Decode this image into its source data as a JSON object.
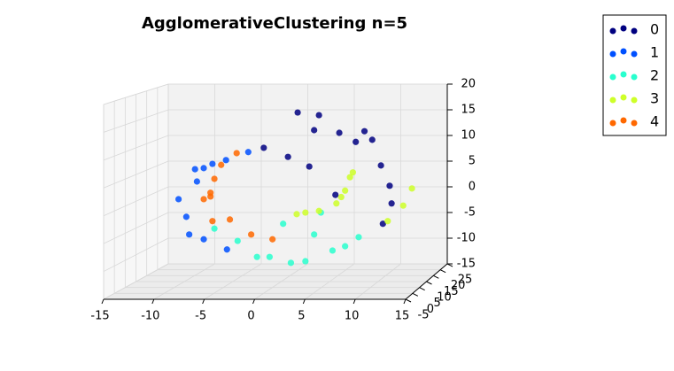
{
  "chart_data": {
    "type": "scatter3d",
    "title": "AgglomerativeClustering n=5",
    "xlim": [
      -15,
      15
    ],
    "xticks": [
      -15,
      -10,
      -5,
      0,
      5,
      10,
      15
    ],
    "ylim": [
      -5,
      25
    ],
    "yticks": [
      -5,
      0,
      5,
      10,
      15,
      20,
      25
    ],
    "zlim": [
      -15,
      20
    ],
    "zticks": [
      -15,
      -10,
      -5,
      0,
      5,
      10,
      15,
      20
    ],
    "grid": true,
    "legend": "outside-upper-right",
    "series": [
      {
        "name": "0",
        "color": "#000080",
        "x": [
          1.7,
          3.4,
          6.0,
          7.7,
          10.3,
          11.2,
          11.4,
          10.5,
          5.6,
          2.9,
          0.7,
          -1.8,
          3.9,
          8.6,
          9.4
        ],
        "y": [
          10,
          10,
          10,
          10,
          10,
          10,
          10,
          10,
          10,
          10,
          10,
          10,
          10,
          10,
          10
        ],
        "z": [
          16.6,
          13.3,
          12.8,
          11.1,
          6.7,
          2.9,
          -0.4,
          -4.2,
          1.2,
          6.5,
          8.3,
          10.0,
          16.1,
          13.1,
          11.5
        ]
      },
      {
        "name": "1",
        "color": "#0050ff",
        "x": [
          -3.4,
          -5.7,
          -8.0,
          -8.7,
          -10.6,
          -9.8,
          -9.5,
          -8.0,
          -7.1,
          -5.6,
          -8.9
        ],
        "y": [
          10,
          10,
          10,
          10,
          10,
          10,
          10,
          10,
          10,
          10,
          10
        ],
        "z": [
          9.2,
          7.7,
          6.2,
          3.7,
          0.4,
          -2.9,
          -6.2,
          -7.1,
          7.0,
          -9.0,
          6.0
        ]
      },
      {
        "name": "2",
        "color": "#29ffce",
        "x": [
          -6.9,
          -4.5,
          -2.5,
          1.0,
          2.5,
          5.3,
          6.6,
          3.4,
          0.2,
          -1.2,
          8.0,
          4.1
        ],
        "y": [
          10,
          10,
          10,
          10,
          10,
          10,
          10,
          10,
          10,
          10,
          10,
          10
        ],
        "z": [
          -5.1,
          -7.4,
          -10.4,
          -11.5,
          -11.2,
          -9.2,
          -8.4,
          -6.2,
          -4.2,
          -10.4,
          -6.7,
          -2.1
        ]
      },
      {
        "name": "3",
        "color": "#ceff29",
        "x": [
          1.6,
          3.9,
          5.7,
          6.6,
          7.1,
          7.4,
          12.6,
          13.5,
          11.0,
          2.5,
          6.2
        ],
        "y": [
          10,
          10,
          10,
          10,
          10,
          10,
          10,
          10,
          10,
          10,
          10
        ],
        "z": [
          -2.4,
          -1.8,
          -0.4,
          2.0,
          4.5,
          5.4,
          -0.8,
          2.4,
          -3.7,
          -2.1,
          0.8
        ]
      },
      {
        "name": "4",
        "color": "#ff6800",
        "x": [
          -4.6,
          -6.2,
          -6.9,
          -7.3,
          -8.0,
          -7.1,
          -5.3,
          -3.1,
          -0.9,
          -7.3
        ],
        "y": [
          10,
          10,
          10,
          10,
          10,
          10,
          10,
          10,
          10,
          10
        ],
        "z": [
          9.0,
          6.8,
          4.2,
          0.9,
          0.4,
          -3.7,
          -3.4,
          -6.2,
          -7.1,
          1.6
        ]
      }
    ]
  }
}
